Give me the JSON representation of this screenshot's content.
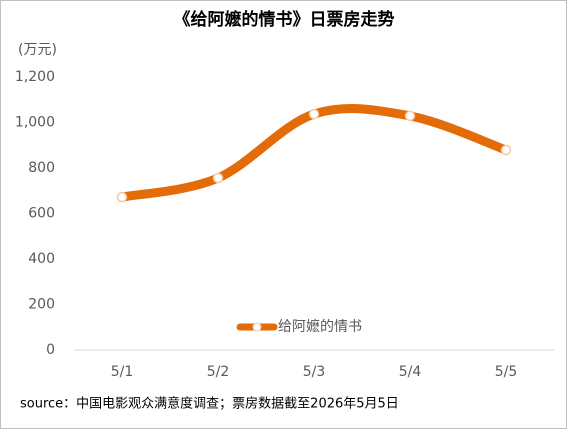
{
  "chart_data": {
    "type": "line",
    "title": "《给阿嬷的情书》日票房走势",
    "y_unit": "(万元)",
    "categories": [
      "5/1",
      "5/2",
      "5/3",
      "5/4",
      "5/5"
    ],
    "series": [
      {
        "name": "给阿嬷的情书",
        "color": "#e36c09",
        "values": [
          672,
          756,
          1037,
          1029,
          879
        ]
      }
    ],
    "ylim": [
      0,
      1200
    ],
    "yticks": [
      0,
      200,
      400,
      600,
      800,
      {
        "value": 1000,
        "label": "1,000"
      },
      {
        "value": 1200,
        "label": "1,200"
      }
    ],
    "grid": false,
    "smooth": true,
    "legend": "bottom",
    "source": "source：中国电影观众满意度调查；票房数据截至2026年5月5日"
  }
}
